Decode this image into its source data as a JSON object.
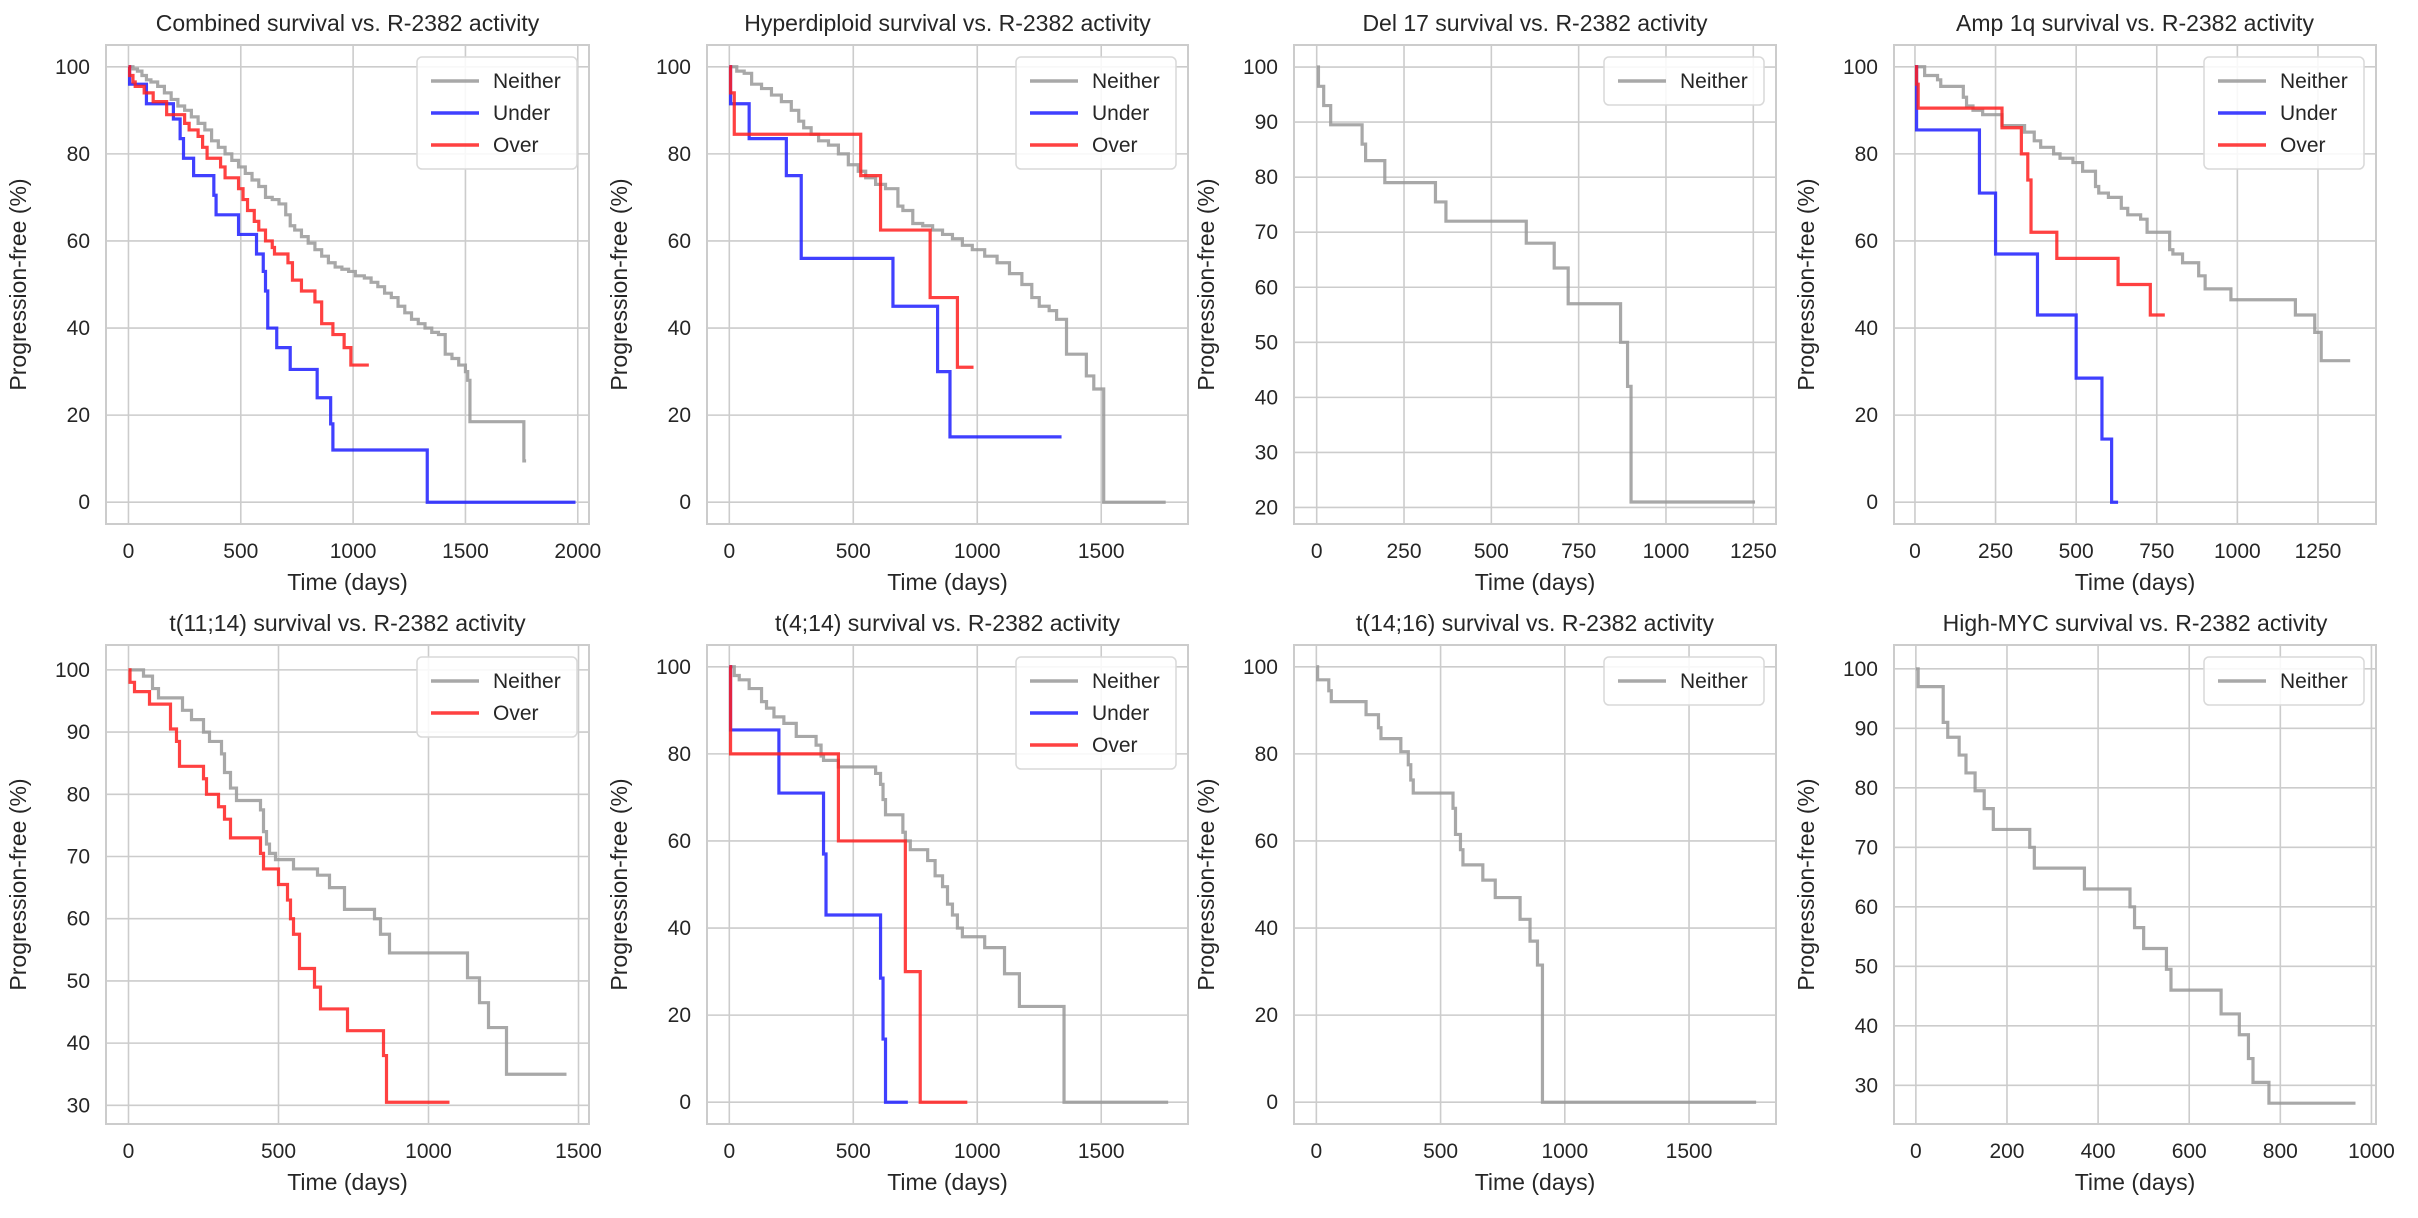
{
  "chart_data": [
    {
      "type": "line",
      "step": true,
      "title": "Combined survival vs. R-2382 activity",
      "xlabel": "Time (days)",
      "ylabel": "Progression-free (%)",
      "xlim": [
        -100,
        2050
      ],
      "ylim": [
        -5,
        105
      ],
      "xticks": [
        0,
        500,
        1000,
        1500,
        2000
      ],
      "yticks": [
        0,
        20,
        40,
        60,
        80,
        100
      ],
      "grid": true,
      "legend": "top-right",
      "series": [
        {
          "name": "Neither",
          "color": "#999999",
          "x": [
            0,
            20,
            40,
            60,
            80,
            100,
            130,
            160,
            190,
            220,
            250,
            280,
            310,
            340,
            370,
            400,
            430,
            460,
            490,
            520,
            550,
            580,
            610,
            640,
            670,
            700,
            720,
            740,
            770,
            800,
            830,
            860,
            890,
            920,
            950,
            980,
            1010,
            1050,
            1080,
            1110,
            1140,
            1170,
            1200,
            1230,
            1260,
            1290,
            1320,
            1350,
            1380,
            1410,
            1440,
            1470,
            1500,
            1510,
            1520,
            1760,
            1770
          ],
          "y": [
            100,
            99.5,
            99,
            98,
            97,
            96.5,
            95.5,
            94,
            92.5,
            91,
            90,
            88.5,
            87,
            85.5,
            83,
            81.5,
            80,
            78.5,
            77,
            75.5,
            74,
            72.5,
            70,
            69.5,
            68.5,
            66,
            63.5,
            62.5,
            61,
            59.5,
            58,
            56.5,
            55,
            54,
            53.5,
            53,
            52,
            51.5,
            50.5,
            49.5,
            48,
            47,
            45,
            43.5,
            42,
            41,
            40,
            39,
            38.5,
            34,
            33,
            31.5,
            30,
            28,
            18.5,
            9.5,
            9.5
          ]
        },
        {
          "name": "Under",
          "color": "#1f1fff",
          "x": [
            0,
            5,
            80,
            200,
            230,
            245,
            290,
            380,
            390,
            490,
            570,
            600,
            610,
            620,
            660,
            720,
            840,
            900,
            910,
            1330,
            1990
          ],
          "y": [
            100,
            96,
            91.5,
            88,
            83.5,
            79,
            75,
            70.5,
            66,
            61.5,
            57,
            53,
            48.5,
            40,
            35.5,
            30.5,
            24,
            18,
            12,
            0,
            0
          ]
        },
        {
          "name": "Over",
          "color": "#ff2020",
          "x": [
            0,
            5,
            20,
            30,
            70,
            110,
            170,
            250,
            270,
            310,
            330,
            350,
            410,
            430,
            490,
            510,
            530,
            560,
            580,
            610,
            640,
            650,
            710,
            730,
            770,
            830,
            860,
            910,
            960,
            990,
            1070
          ],
          "y": [
            100,
            98,
            96.5,
            95.5,
            94,
            92,
            89,
            87,
            85.5,
            84,
            81.5,
            79,
            77,
            74.5,
            72,
            69.5,
            67,
            64.5,
            62.5,
            60,
            58.5,
            57,
            55,
            51,
            48.5,
            46,
            41,
            38.5,
            35.5,
            31.5,
            31.5
          ]
        }
      ]
    },
    {
      "type": "line",
      "step": true,
      "title": "Hyperdiploid survival vs. R-2382 activity",
      "xlabel": "Time (days)",
      "ylabel": "Progression-free (%)",
      "xlim": [
        -90,
        1850
      ],
      "ylim": [
        -5,
        105
      ],
      "xticks": [
        0,
        500,
        1000,
        1500
      ],
      "yticks": [
        0,
        20,
        40,
        60,
        80,
        100
      ],
      "grid": true,
      "legend": "top-right",
      "series": [
        {
          "name": "Neither",
          "color": "#999999",
          "x": [
            0,
            30,
            60,
            90,
            130,
            170,
            210,
            250,
            280,
            300,
            330,
            360,
            400,
            440,
            480,
            520,
            550,
            590,
            630,
            680,
            700,
            740,
            780,
            820,
            860,
            900,
            940,
            980,
            1030,
            1080,
            1130,
            1180,
            1220,
            1250,
            1290,
            1320,
            1360,
            1420,
            1440,
            1470,
            1510,
            1520,
            1760
          ],
          "y": [
            100,
            99,
            98.5,
            96,
            95,
            93.5,
            92,
            90,
            87.5,
            86,
            84.5,
            83,
            82,
            80,
            77.5,
            76,
            74.5,
            73,
            72,
            68,
            67,
            64,
            63.5,
            62.5,
            61.5,
            60.5,
            59,
            58,
            56.5,
            55,
            52.5,
            50,
            47,
            45,
            44,
            42,
            34,
            34,
            29,
            26,
            0,
            0,
            0
          ]
        },
        {
          "name": "Under",
          "color": "#1f1fff",
          "x": [
            0,
            5,
            80,
            230,
            290,
            660,
            840,
            890,
            1340
          ],
          "y": [
            100,
            91.5,
            83.5,
            75,
            56,
            45,
            30,
            15,
            15
          ]
        },
        {
          "name": "Over",
          "color": "#ff2020",
          "x": [
            0,
            5,
            20,
            530,
            610,
            810,
            920,
            985
          ],
          "y": [
            100,
            94,
            84.5,
            75,
            62.5,
            47,
            31,
            31
          ]
        }
      ]
    },
    {
      "type": "line",
      "step": true,
      "title": "Del 17 survival vs. R-2382 activity",
      "xlabel": "Time (days)",
      "ylabel": "Progression-free (%)",
      "xlim": [
        -65,
        1315
      ],
      "ylim": [
        17,
        104
      ],
      "xticks": [
        0,
        250,
        500,
        750,
        1000,
        1250
      ],
      "yticks": [
        20,
        30,
        40,
        50,
        60,
        70,
        80,
        90,
        100
      ],
      "grid": true,
      "legend": "top-right",
      "series": [
        {
          "name": "Neither",
          "color": "#999999",
          "x": [
            0,
            5,
            20,
            40,
            130,
            140,
            195,
            340,
            370,
            600,
            680,
            720,
            870,
            890,
            900,
            1255
          ],
          "y": [
            100,
            96.5,
            93,
            89.5,
            86,
            83,
            79,
            75.5,
            72,
            68,
            63.5,
            57,
            50,
            42,
            21,
            21
          ]
        }
      ]
    },
    {
      "type": "line",
      "step": true,
      "title": "Amp 1q survival vs. R-2382 activity",
      "xlabel": "Time (days)",
      "ylabel": "Progression-free (%)",
      "xlim": [
        -65,
        1430
      ],
      "ylim": [
        -5,
        105
      ],
      "xticks": [
        0,
        250,
        500,
        750,
        1000,
        1250
      ],
      "yticks": [
        0,
        20,
        40,
        60,
        80,
        100
      ],
      "grid": true,
      "legend": "top-right",
      "series": [
        {
          "name": "Neither",
          "color": "#999999",
          "x": [
            0,
            30,
            70,
            80,
            150,
            160,
            180,
            210,
            270,
            340,
            370,
            390,
            430,
            450,
            490,
            520,
            560,
            570,
            600,
            640,
            660,
            700,
            720,
            730,
            790,
            800,
            830,
            880,
            900,
            980,
            1180,
            1240,
            1260,
            1350
          ],
          "y": [
            100,
            98,
            97,
            95.5,
            93,
            91,
            90,
            89,
            86.5,
            85,
            83,
            81.5,
            80,
            79,
            78,
            76,
            72.5,
            71,
            70,
            67.5,
            66,
            65,
            62,
            62,
            58,
            57,
            55,
            52,
            49,
            46.5,
            43,
            39,
            32.5,
            32.5
          ]
        },
        {
          "name": "Under",
          "color": "#1f1fff",
          "x": [
            0,
            5,
            200,
            250,
            380,
            500,
            580,
            610,
            630
          ],
          "y": [
            100,
            85.5,
            71,
            57,
            43,
            28.5,
            14.5,
            0,
            0
          ]
        },
        {
          "name": "Over",
          "color": "#ff2020",
          "x": [
            0,
            5,
            10,
            270,
            330,
            350,
            360,
            440,
            630,
            730,
            775
          ],
          "y": [
            100,
            96,
            90.5,
            86,
            80,
            74,
            62,
            56,
            50,
            43,
            43
          ]
        }
      ]
    },
    {
      "type": "line",
      "step": true,
      "title": "t(11;14) survival vs. R-2382 activity",
      "xlabel": "Time (days)",
      "ylabel": "Progression-free (%)",
      "xlim": [
        -75,
        1535
      ],
      "ylim": [
        27,
        104
      ],
      "xticks": [
        0,
        500,
        1000,
        1500
      ],
      "yticks": [
        30,
        40,
        50,
        60,
        70,
        80,
        90,
        100
      ],
      "grid": true,
      "legend": "top-right",
      "series": [
        {
          "name": "Neither",
          "color": "#999999",
          "x": [
            0,
            50,
            80,
            100,
            180,
            210,
            250,
            270,
            310,
            320,
            340,
            360,
            440,
            450,
            460,
            470,
            490,
            550,
            630,
            670,
            720,
            820,
            840,
            870,
            1130,
            1170,
            1200,
            1260,
            1460
          ],
          "y": [
            100,
            99,
            97,
            95.5,
            93.5,
            92,
            90,
            88.5,
            86.5,
            83.5,
            81,
            79,
            77.5,
            74,
            72,
            70.5,
            69.5,
            68,
            67,
            65,
            61.5,
            60,
            57.5,
            54.5,
            50.5,
            46.5,
            42.5,
            35,
            35
          ]
        },
        {
          "name": "Over",
          "color": "#ff2020",
          "x": [
            0,
            5,
            20,
            70,
            140,
            160,
            170,
            250,
            260,
            300,
            320,
            340,
            440,
            450,
            500,
            530,
            540,
            550,
            570,
            620,
            640,
            730,
            850,
            860,
            1070
          ],
          "y": [
            100,
            98,
            96.5,
            94.5,
            90.5,
            88.5,
            84.5,
            82.5,
            80,
            78,
            76,
            73,
            70.5,
            68,
            65.5,
            63,
            60,
            57.5,
            52,
            49,
            45.5,
            42,
            38,
            30.5,
            30.5
          ]
        }
      ]
    },
    {
      "type": "line",
      "step": true,
      "title": "t(4;14) survival vs. R-2382 activity",
      "xlabel": "Time (days)",
      "ylabel": "Progression-free (%)",
      "xlim": [
        -90,
        1850
      ],
      "ylim": [
        -5,
        105
      ],
      "xticks": [
        0,
        500,
        1000,
        1500
      ],
      "yticks": [
        0,
        20,
        40,
        60,
        80,
        100
      ],
      "grid": true,
      "legend": "top-right",
      "series": [
        {
          "name": "Neither",
          "color": "#999999",
          "x": [
            0,
            20,
            40,
            80,
            130,
            150,
            180,
            220,
            270,
            350,
            370,
            380,
            440,
            590,
            610,
            620,
            630,
            660,
            700,
            710,
            730,
            800,
            830,
            860,
            880,
            900,
            920,
            940,
            1030,
            1110,
            1170,
            1350,
            1770
          ],
          "y": [
            100,
            98,
            97,
            95,
            92,
            90.5,
            88.5,
            87,
            84,
            82,
            79.5,
            78.5,
            77,
            75.5,
            73,
            69.5,
            66,
            66,
            62,
            60,
            58,
            55.5,
            52,
            49.5,
            45.5,
            43,
            40,
            38,
            35.5,
            29.5,
            22,
            0,
            0
          ]
        },
        {
          "name": "Under",
          "color": "#1f1fff",
          "x": [
            0,
            5,
            200,
            380,
            390,
            610,
            620,
            630,
            720
          ],
          "y": [
            100,
            85.5,
            71,
            57,
            43,
            28.5,
            14.5,
            0,
            0
          ]
        },
        {
          "name": "Over",
          "color": "#ff2020",
          "x": [
            0,
            5,
            440,
            710,
            770,
            960
          ],
          "y": [
            100,
            80,
            60,
            30,
            0,
            0
          ]
        }
      ]
    },
    {
      "type": "line",
      "step": true,
      "title": "t(14;16) survival vs. R-2382 activity",
      "xlabel": "Time (days)",
      "ylabel": "Progression-free (%)",
      "xlim": [
        -90,
        1850
      ],
      "ylim": [
        -5,
        105
      ],
      "xticks": [
        0,
        500,
        1000,
        1500
      ],
      "yticks": [
        0,
        20,
        40,
        60,
        80,
        100
      ],
      "grid": true,
      "legend": "top-right",
      "series": [
        {
          "name": "Neither",
          "color": "#999999",
          "x": [
            0,
            5,
            50,
            60,
            200,
            250,
            260,
            340,
            370,
            380,
            390,
            550,
            560,
            580,
            590,
            670,
            720,
            820,
            860,
            890,
            910,
            1770
          ],
          "y": [
            100,
            97,
            94.5,
            92,
            89,
            86,
            83.5,
            80.5,
            77.5,
            74,
            71,
            67.5,
            61.5,
            58,
            54.5,
            51,
            47,
            42,
            37,
            31.5,
            0,
            0
          ]
        }
      ]
    },
    {
      "type": "line",
      "step": true,
      "title": "High-MYC survival vs. R-2382 activity",
      "xlabel": "Time (days)",
      "ylabel": "Progression-free (%)",
      "xlim": [
        -48,
        1010
      ],
      "ylim": [
        23.5,
        104
      ],
      "xticks": [
        0,
        200,
        400,
        600,
        800,
        1000
      ],
      "yticks": [
        30,
        40,
        50,
        60,
        70,
        80,
        90,
        100
      ],
      "grid": true,
      "legend": "top-right",
      "series": [
        {
          "name": "Neither",
          "color": "#999999",
          "x": [
            0,
            5,
            60,
            70,
            95,
            110,
            130,
            150,
            170,
            250,
            260,
            370,
            470,
            480,
            500,
            550,
            560,
            670,
            710,
            730,
            740,
            775,
            965
          ],
          "y": [
            100,
            97,
            91,
            88.5,
            85.5,
            82.5,
            79.5,
            76.5,
            73,
            70,
            66.5,
            63,
            60,
            56.5,
            53,
            49.5,
            46,
            42,
            38.5,
            34.5,
            30.5,
            27,
            27
          ]
        }
      ]
    }
  ]
}
